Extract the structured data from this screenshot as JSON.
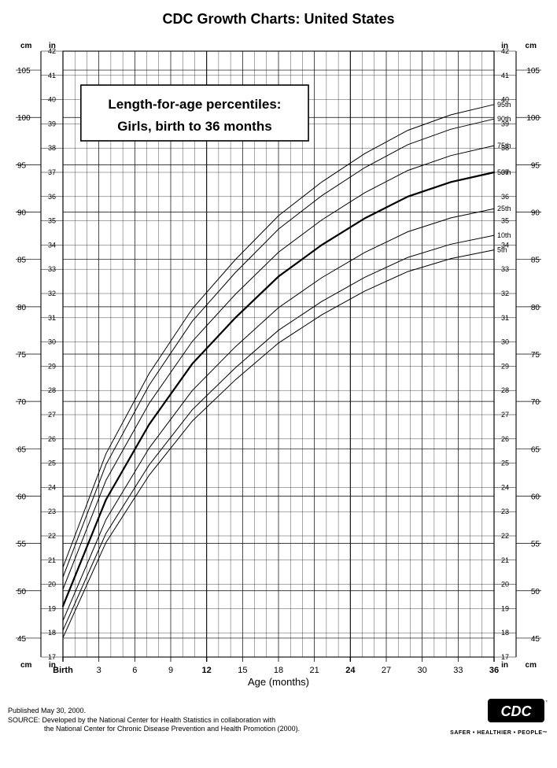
{
  "title": "CDC Growth Charts: United States",
  "subtitle_line1": "Length-for-age percentiles:",
  "subtitle_line2": "Girls, birth to 36 months",
  "x_axis_label": "Age (months)",
  "footer_pub": "Published May 30, 2000.",
  "footer_src1": "SOURCE: Developed by the National Center for Health Statistics in collaboration with",
  "footer_src2": "the National Center for Chronic Disease Prevention and Health Promotion (2000).",
  "tagline": "SAFER • HEALTHIER • PEOPLE",
  "cdc_label": "CDC",
  "chart": {
    "type": "line",
    "background_color": "#ffffff",
    "stroke_color": "#000000",
    "grid_major_color": "#000000",
    "grid_minor_color": "#000000",
    "grid_minor_width": 0.35,
    "grid_major_width": 1.1,
    "plot_font_size_small": 9,
    "plot_font_size_axis": 11,
    "subtitle_font_size": 17,
    "x": {
      "min": 0,
      "max": 36,
      "ticks": [
        0,
        3,
        6,
        9,
        12,
        15,
        18,
        21,
        24,
        27,
        30,
        33,
        36
      ],
      "tick_labels": [
        "Birth",
        "3",
        "6",
        "9",
        "12",
        "15",
        "18",
        "21",
        "24",
        "27",
        "30",
        "33",
        "36"
      ],
      "bold_ticks": [
        0,
        12,
        24,
        36
      ],
      "minor_step": 1
    },
    "y_cm": {
      "min": 43,
      "max": 107,
      "ticks": [
        45,
        50,
        55,
        60,
        65,
        70,
        75,
        80,
        85,
        90,
        95,
        100,
        105
      ],
      "label_top": "cm",
      "label_bottom": "cm"
    },
    "y_in": {
      "min": 17,
      "max": 42,
      "ticks": [
        17,
        18,
        19,
        20,
        21,
        22,
        23,
        24,
        25,
        26,
        27,
        28,
        29,
        30,
        31,
        32,
        33,
        34,
        35,
        36,
        37,
        38,
        39,
        40,
        41,
        42
      ],
      "label_top": "in",
      "label_bottom": "in"
    },
    "percentile_labels": [
      "5th",
      "10th",
      "25th",
      "50th",
      "75th",
      "90th",
      "95th"
    ],
    "percentile_bounds_in": {
      "5th": [
        17.8,
        33.8
      ],
      "10th": [
        18.1,
        34.4
      ],
      "25th": [
        18.5,
        35.5
      ],
      "50th": [
        19.1,
        37.0
      ],
      "75th": [
        19.8,
        38.1
      ],
      "90th": [
        20.3,
        39.2
      ],
      "95th": [
        20.7,
        39.8
      ]
    },
    "curve_shape_offsets_in": [
      0.0,
      4.4,
      7.5,
      10.0,
      11.9,
      13.6,
      14.9,
      16.0,
      16.9,
      17.5,
      17.9
    ],
    "line_widths": {
      "normal": 1.0,
      "bold": 2.2
    }
  }
}
